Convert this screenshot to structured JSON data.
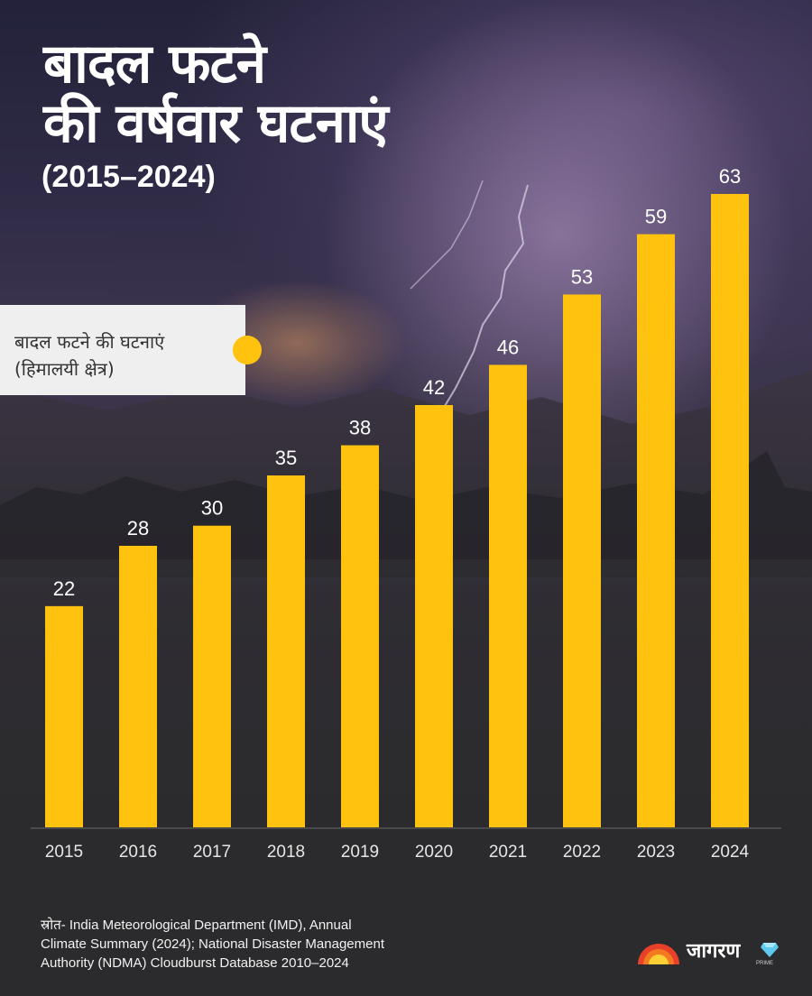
{
  "header": {
    "title_line1": "बादल फटने",
    "title_line2": "की वर्षवार घटनाएं",
    "subtitle": "(2015–2024)"
  },
  "legend": {
    "line1": "बादल फटने की घटनाएं",
    "line2": "(हिमालयी क्षेत्र)",
    "color": "#ffc20e"
  },
  "chart_data": {
    "type": "bar",
    "title": "बादल फटने की वर्षवार घटनाएं",
    "subtitle": "(2015–2024)",
    "xlabel": "",
    "ylabel": "",
    "categories": [
      "2015",
      "2016",
      "2017",
      "2018",
      "2019",
      "2020",
      "2021",
      "2022",
      "2023",
      "2024"
    ],
    "series": [
      {
        "name": "बादल फटने की घटनाएं (हिमालयी क्षेत्र)",
        "values": [
          22,
          28,
          30,
          35,
          38,
          42,
          46,
          53,
          59,
          63
        ],
        "color": "#ffc20e"
      }
    ],
    "ylim": [
      0,
      63
    ],
    "grid": false,
    "data_labels": true,
    "legend_position": "left"
  },
  "footer": {
    "source_line1": "स्रोत- India Meteorological Department (IMD), Annual",
    "source_line2": "Climate Summary (2024); National Disaster Management",
    "source_line3": "Authority (NDMA) Cloudburst Database 2010–2024"
  },
  "brand": {
    "logo_text": "जागरण",
    "logo_sub": "PRIME",
    "sun_icon": "rising-sun-icon",
    "gem_icon": "diamond-icon"
  },
  "colors": {
    "bar": "#ffc20e",
    "label": "#ffffff",
    "tick": "#e6e6e6",
    "axis": "#4a4a4a"
  }
}
